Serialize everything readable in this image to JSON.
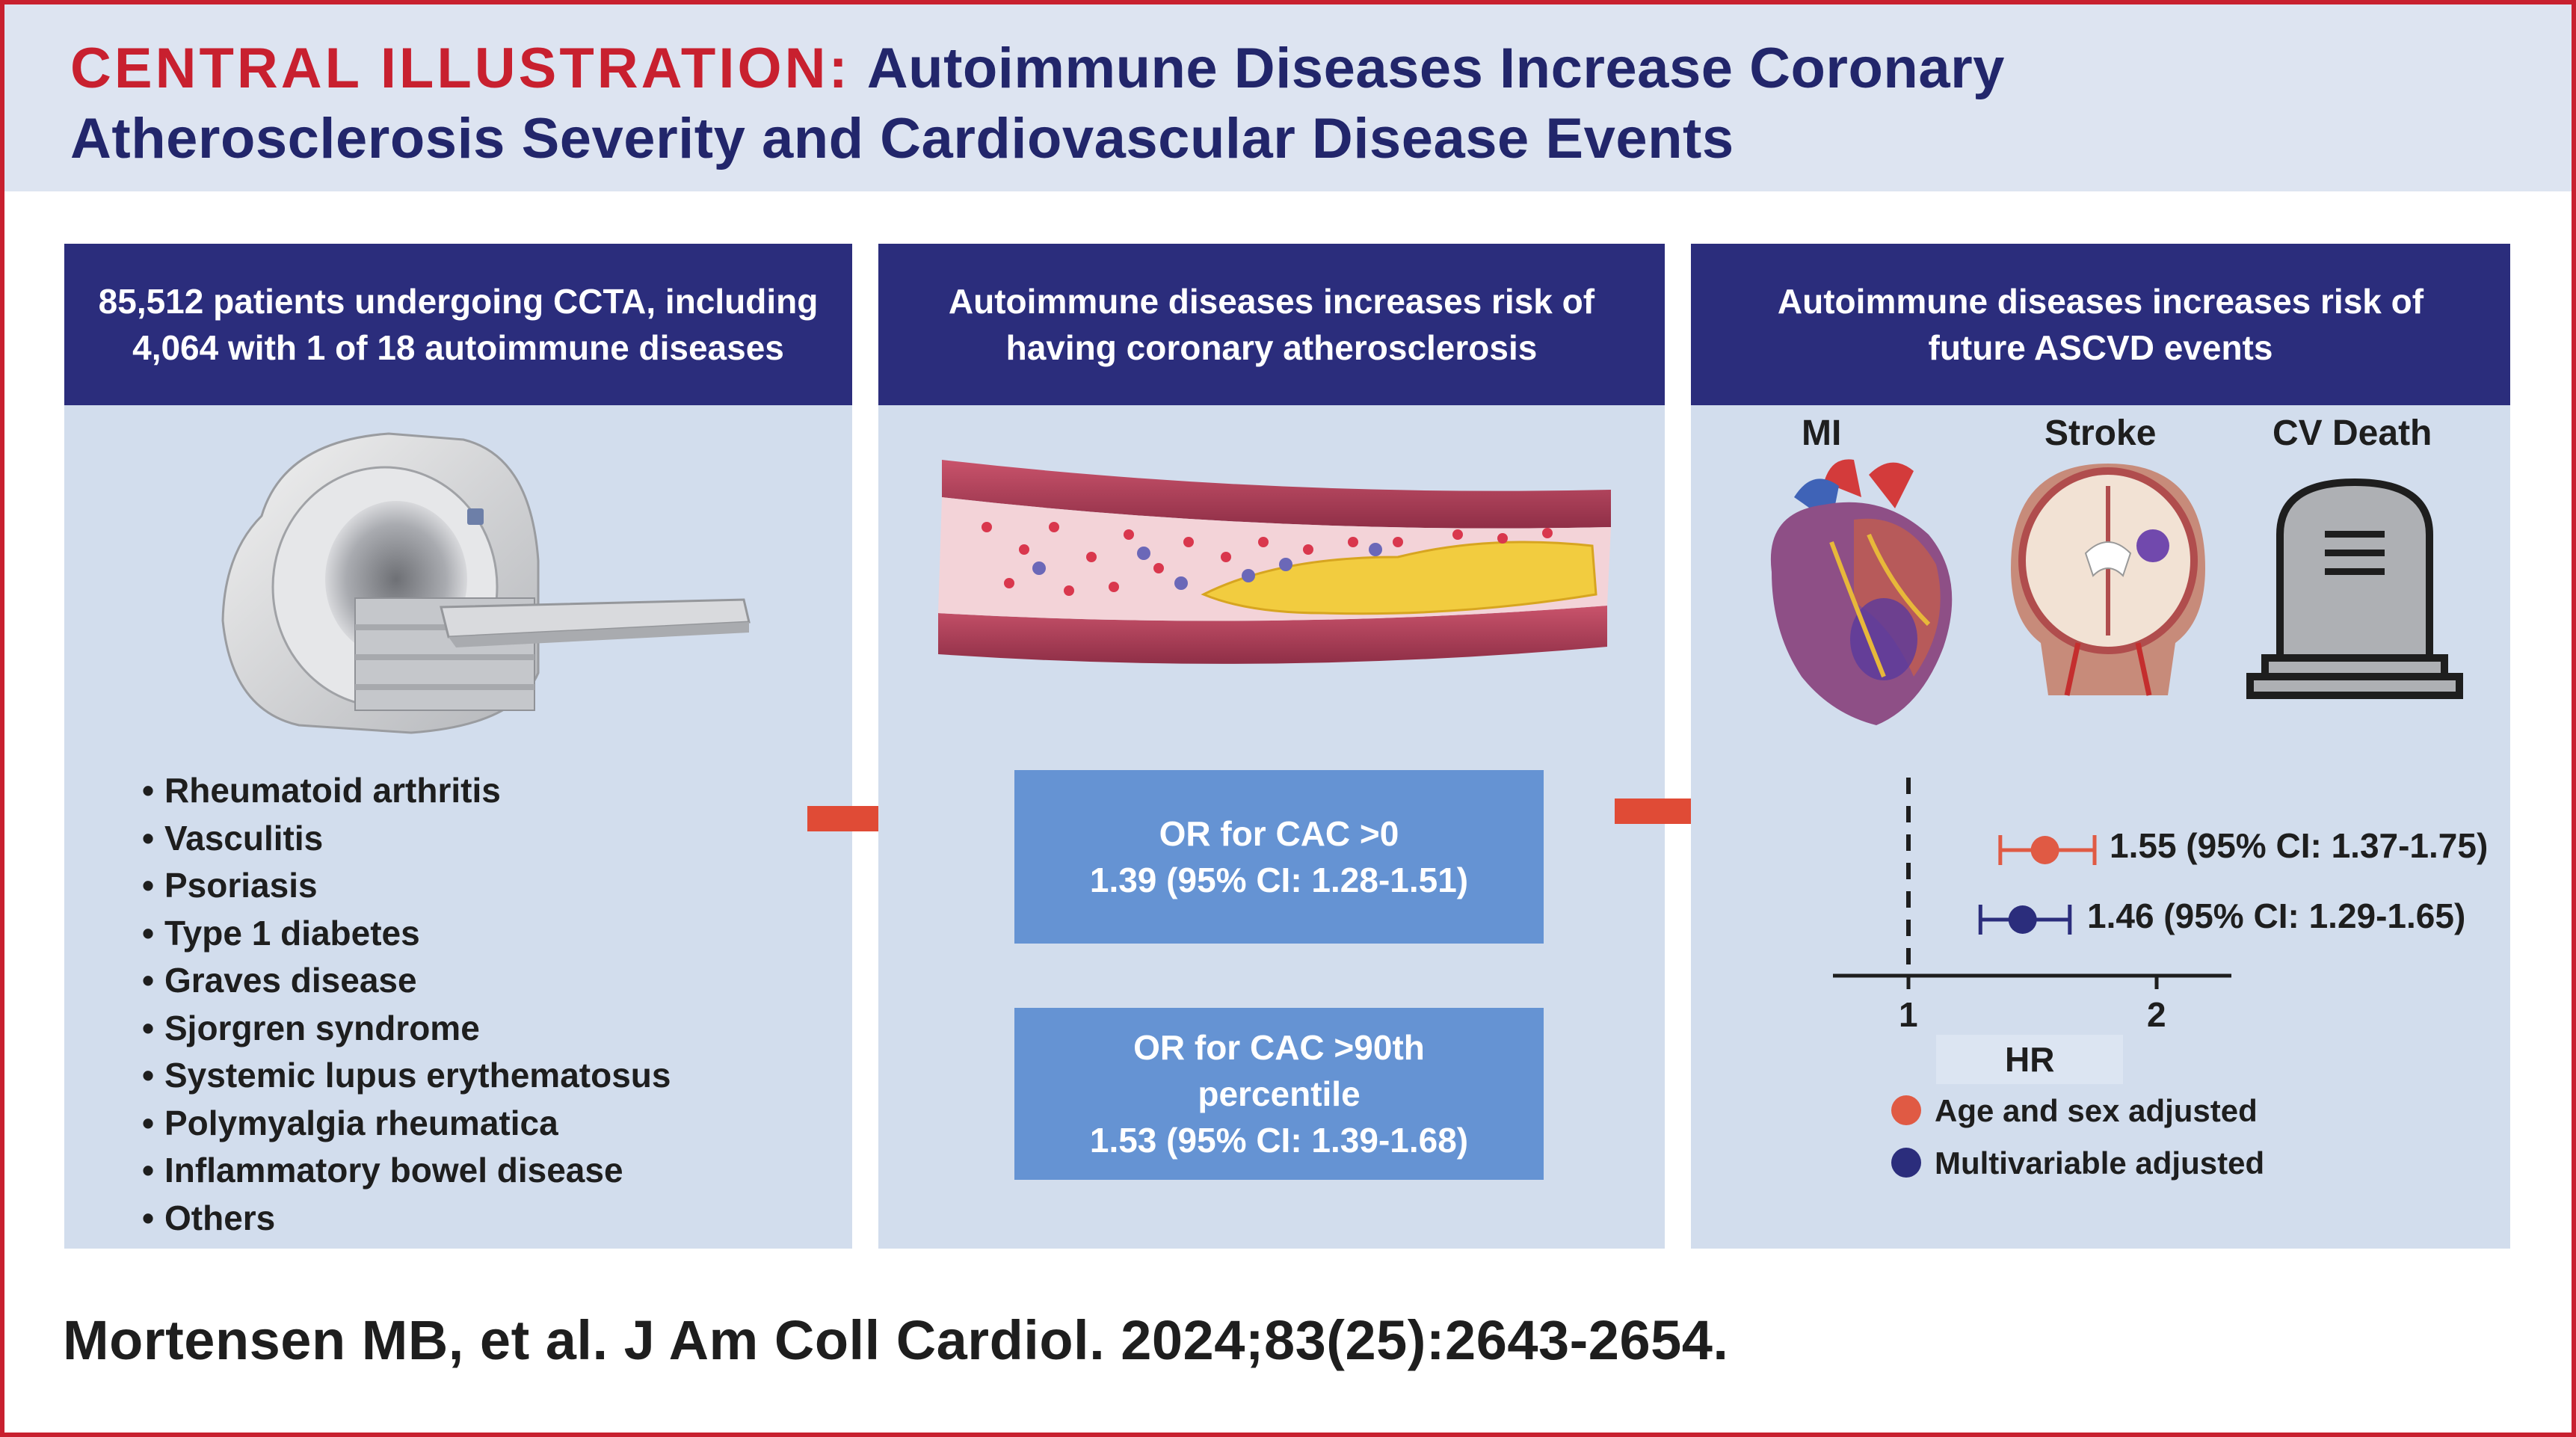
{
  "header": {
    "label": "CENTRAL ILLUSTRATION:",
    "title_line1": "Autoimmune Diseases Increase Coronary",
    "title_line2": "Atherosclerosis Severity and Cardiovascular Disease Events"
  },
  "panel1": {
    "heading_line1": "85,512 patients undergoing CCTA, including",
    "heading_line2": "4,064 with 1 of 18 autoimmune diseases",
    "image": "ct-scanner-icon",
    "diseases": [
      "Rheumatoid arthritis",
      "Vasculitis",
      "Psoriasis",
      "Type 1 diabetes",
      "Graves disease",
      "Sjorgren syndrome",
      "Systemic lupus erythematosus",
      "Polymyalgia rheumatica",
      "Inflammatory bowel disease",
      "Others"
    ]
  },
  "panel2": {
    "heading_line1": "Autoimmune diseases increases risk of",
    "heading_line2": "having coronary atherosclerosis",
    "image": "artery-plaque-icon",
    "box1_line1": "OR for CAC >0",
    "box1_line2": "1.39 (95% CI: 1.28-1.51)",
    "box2_line1": "OR for CAC >90th",
    "box2_line2": "percentile",
    "box2_line3": "1.53 (95% CI: 1.39-1.68)"
  },
  "panel3": {
    "heading_line1": "Autoimmune diseases increases risk of",
    "heading_line2": "future ASCVD events",
    "icons": [
      {
        "label": "MI",
        "icon": "heart-icon"
      },
      {
        "label": "Stroke",
        "icon": "brain-icon"
      },
      {
        "label": "CV Death",
        "icon": "tombstone-icon"
      }
    ]
  },
  "chart_data": {
    "type": "scatter",
    "xlabel": "HR",
    "x_ticks": [
      1,
      2
    ],
    "reference_line": 1,
    "series": [
      {
        "name": "Age and sex adjusted",
        "color": "#e05a44",
        "estimate": 1.55,
        "ci_low": 1.37,
        "ci_high": 1.75,
        "label": "1.55 (95% CI: 1.37-1.75)"
      },
      {
        "name": "Multivariable adjusted",
        "color": "#2b2d7c",
        "estimate": 1.46,
        "ci_low": 1.29,
        "ci_high": 1.65,
        "label": "1.46 (95% CI: 1.29-1.65)"
      }
    ]
  },
  "colors": {
    "accent_red": "#c8202f",
    "navy": "#2b2d7c",
    "panel_bg": "#d2dded",
    "box_blue": "#6593d3",
    "arrow": "#e04b36"
  },
  "citation": "Mortensen MB, et al. J Am Coll Cardiol. 2024;83(25):2643-2654."
}
